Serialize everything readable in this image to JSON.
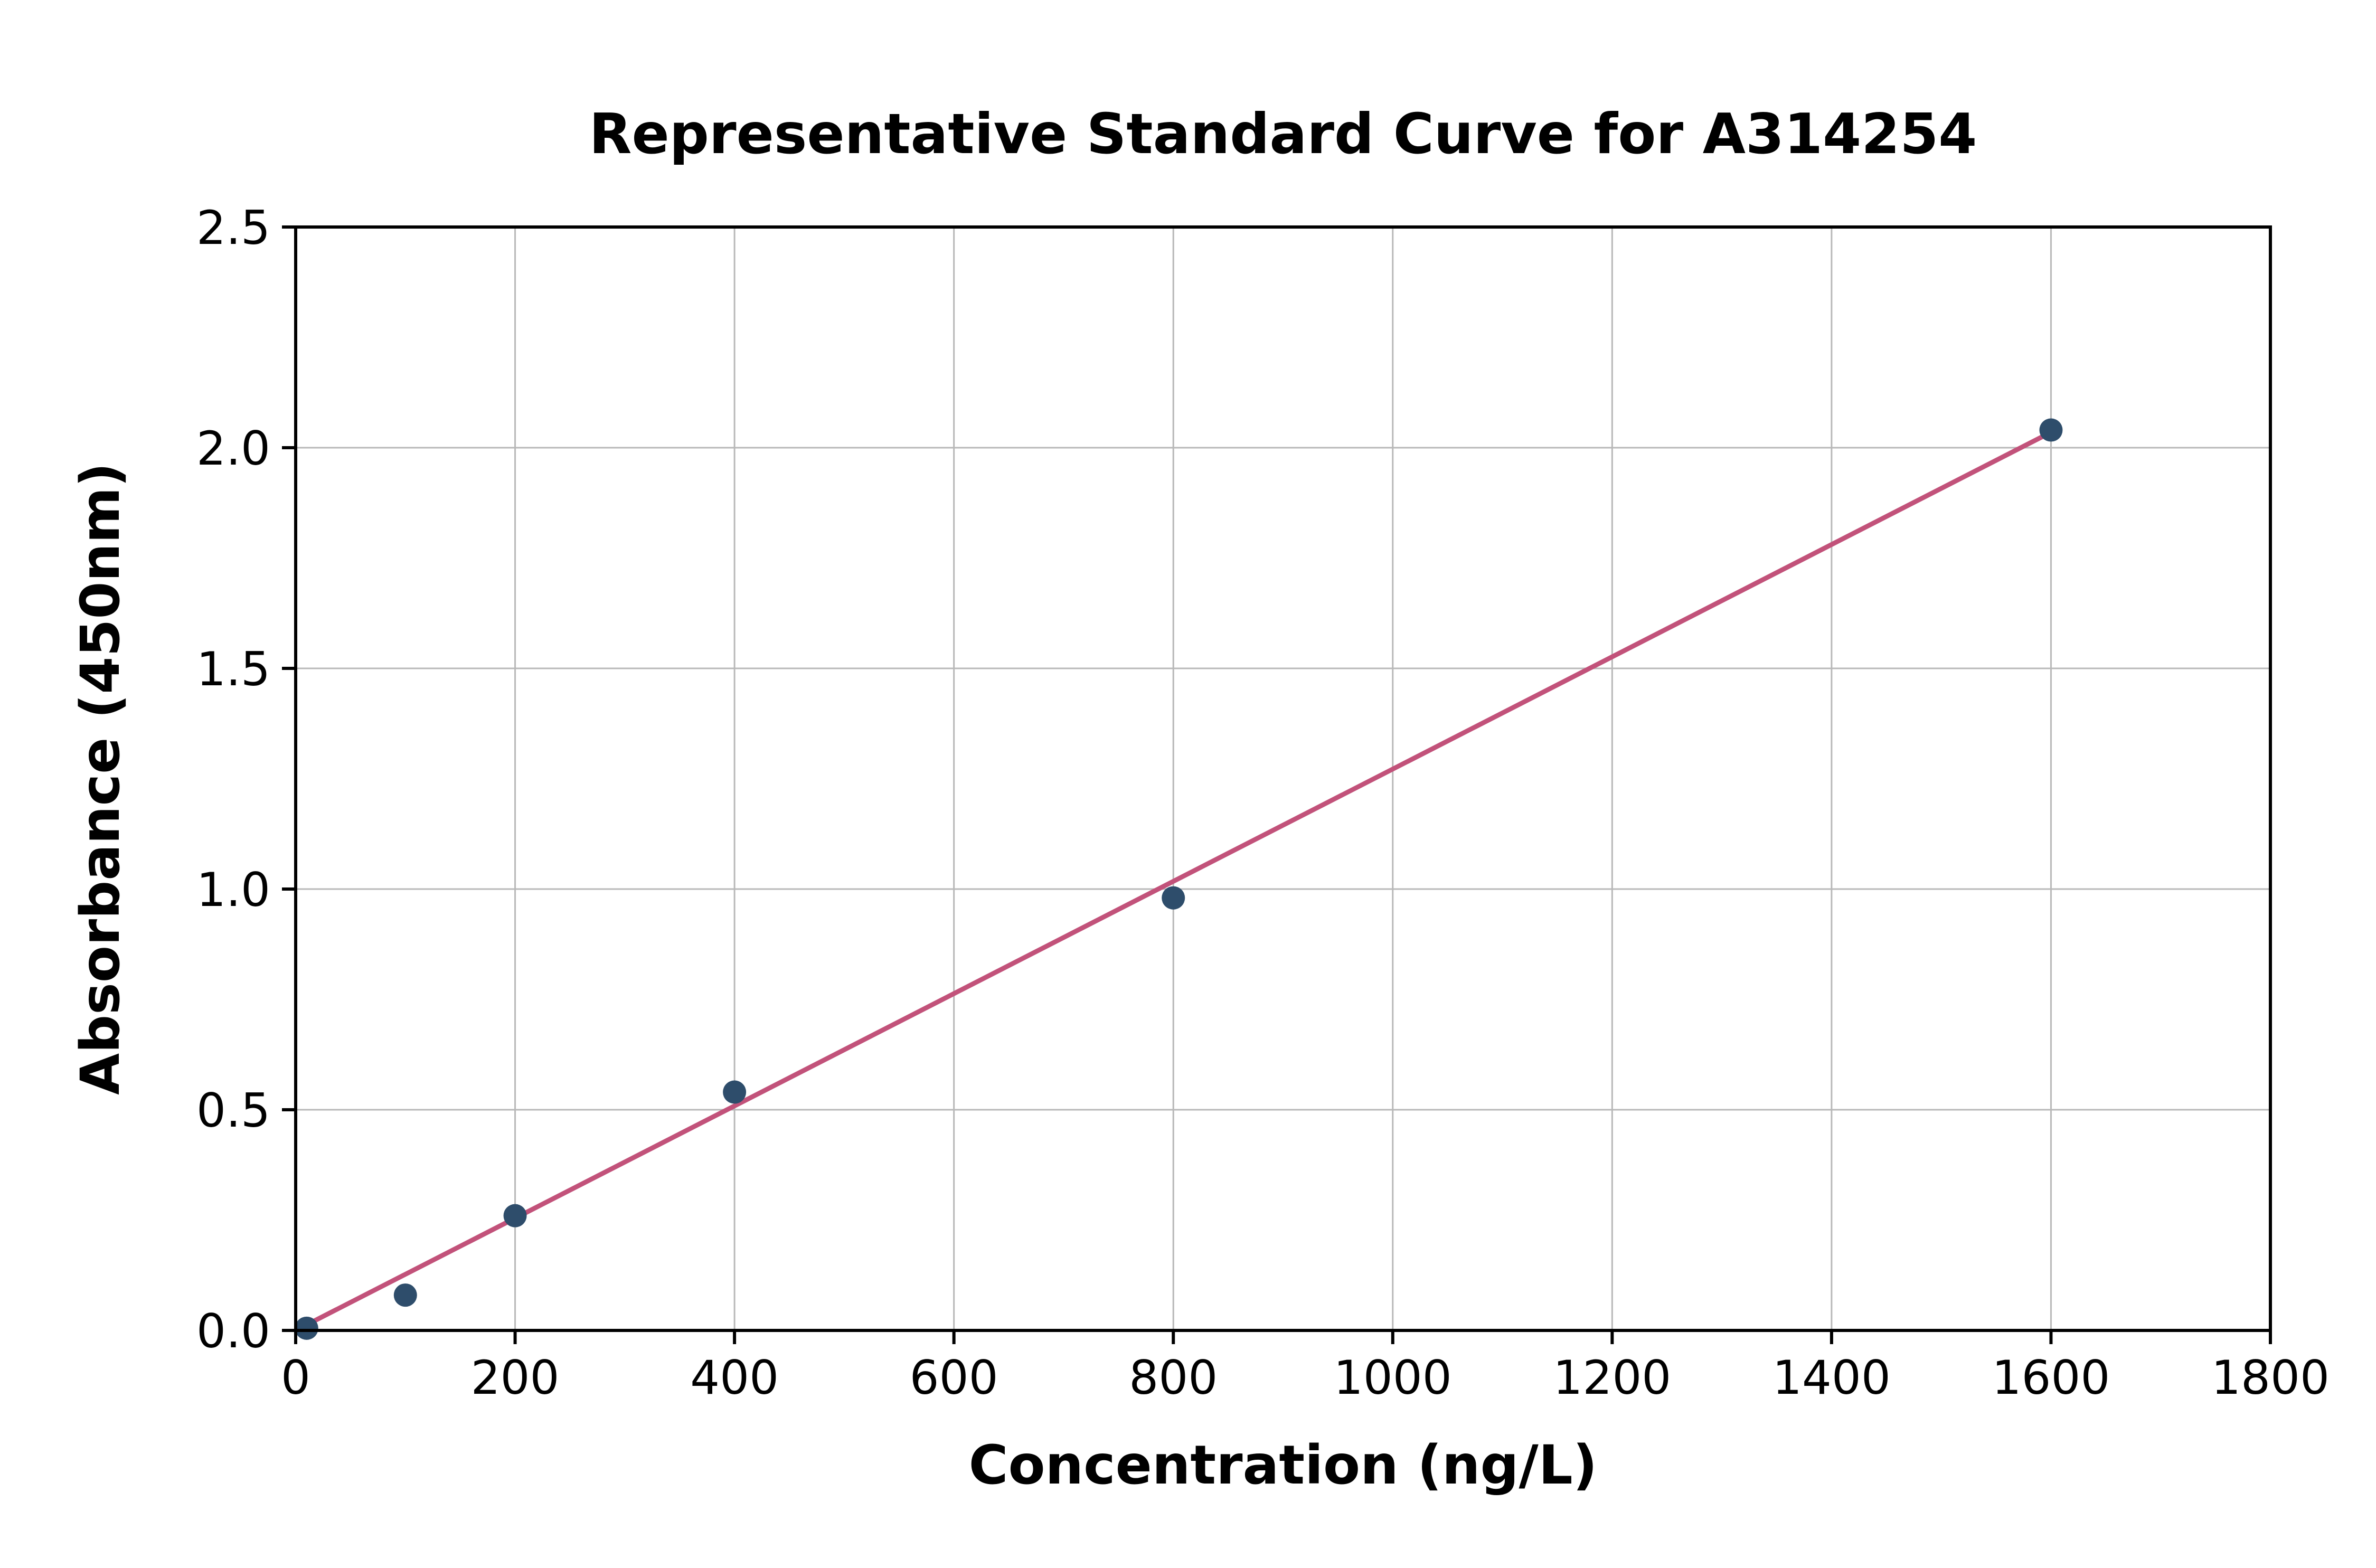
{
  "chart_data": {
    "type": "scatter",
    "title": "Representative Standard Curve for A314254",
    "xlabel": "Concentration (ng/L)",
    "ylabel": "Absorbance (450nm)",
    "points": {
      "x": [
        10,
        100,
        200,
        400,
        800,
        1600
      ],
      "y": [
        0.005,
        0.08,
        0.26,
        0.54,
        0.98,
        2.04
      ]
    },
    "trendline": {
      "x": [
        0,
        1600
      ],
      "y": [
        0.0,
        2.035
      ]
    },
    "xlim": [
      0,
      1800
    ],
    "ylim": [
      0,
      2.5
    ],
    "xticks": [
      0,
      200,
      400,
      600,
      800,
      1000,
      1200,
      1400,
      1600,
      1800
    ],
    "xtick_labels": [
      "0",
      "200",
      "400",
      "600",
      "800",
      "1000",
      "1200",
      "1400",
      "1600",
      "1800"
    ],
    "yticks": [
      0,
      0.5,
      1.0,
      1.5,
      2.0,
      2.5
    ],
    "ytick_labels": [
      "0.0",
      "0.5",
      "1.0",
      "1.5",
      "2.0",
      "2.5"
    ],
    "grid": true,
    "legend_position": "none",
    "colors": {
      "marker": "#2e4d6b",
      "line": "#c2527a",
      "grid": "#b8b8b8",
      "axis": "#000000",
      "background": "#ffffff"
    }
  }
}
